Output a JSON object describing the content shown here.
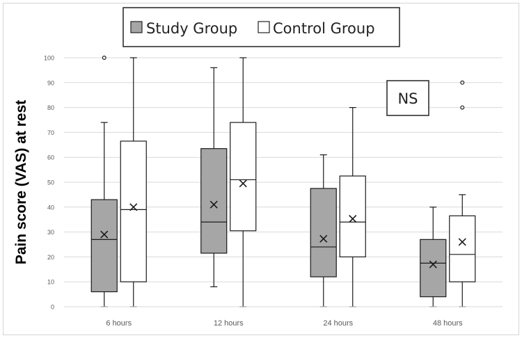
{
  "colors": {
    "study_fill": "#a6a6a6",
    "control_fill": "#ffffff",
    "stroke": "#1a1a1a",
    "grid": "#d9d9d9"
  },
  "chart_data": {
    "type": "boxplot",
    "title": "",
    "xlabel": "",
    "ylabel": "Pain score (VAS) at rest",
    "ylim": [
      0,
      100
    ],
    "yticks": [
      0,
      10,
      20,
      30,
      40,
      50,
      60,
      70,
      80,
      90,
      100
    ],
    "grid": true,
    "legend_position": "top-center",
    "categories": [
      "6 hours",
      "12 hours",
      "24 hours",
      "48 hours"
    ],
    "annotation": "NS",
    "series": [
      {
        "name": "Study Group",
        "boxes": [
          {
            "min": 0,
            "q1": 6,
            "median": 27,
            "q3": 43,
            "max": 74,
            "mean": 29,
            "outliers": [
              100
            ]
          },
          {
            "min": 8,
            "q1": 21.5,
            "median": 34,
            "q3": 63.5,
            "max": 96,
            "mean": 41,
            "outliers": []
          },
          {
            "min": 0,
            "q1": 12,
            "median": 24,
            "q3": 47.5,
            "max": 61,
            "mean": 27.3,
            "outliers": []
          },
          {
            "min": 0,
            "q1": 4,
            "median": 17.5,
            "q3": 27,
            "max": 40,
            "mean": 17,
            "outliers": []
          }
        ]
      },
      {
        "name": "Control Group",
        "boxes": [
          {
            "min": 0,
            "q1": 10,
            "median": 39,
            "q3": 66.5,
            "max": 100,
            "mean": 40,
            "outliers": []
          },
          {
            "min": 0,
            "q1": 30.5,
            "median": 51,
            "q3": 74,
            "max": 100,
            "mean": 49.5,
            "outliers": []
          },
          {
            "min": 0,
            "q1": 20,
            "median": 34,
            "q3": 52.5,
            "max": 80,
            "mean": 35.3,
            "outliers": []
          },
          {
            "min": 0,
            "q1": 10,
            "median": 21,
            "q3": 36.5,
            "max": 45,
            "mean": 26,
            "outliers": [
              80,
              90
            ]
          }
        ]
      }
    ]
  }
}
